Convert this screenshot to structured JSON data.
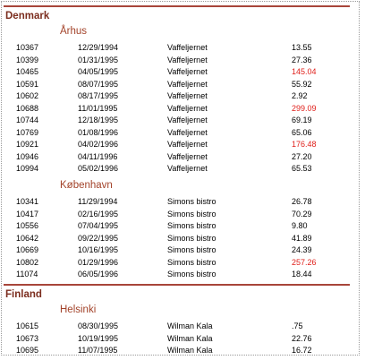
{
  "groups": [
    {
      "country": "Denmark",
      "cities": [
        {
          "name": "Århus",
          "rows": [
            {
              "id": "10367",
              "date": "12/29/1994",
              "customer": "Vaffeljernet",
              "amount": "13.55"
            },
            {
              "id": "10399",
              "date": "01/31/1995",
              "customer": "Vaffeljernet",
              "amount": "27.36"
            },
            {
              "id": "10465",
              "date": "04/05/1995",
              "customer": "Vaffeljernet",
              "amount": "145.04",
              "highlight": true
            },
            {
              "id": "10591",
              "date": "08/07/1995",
              "customer": "Vaffeljernet",
              "amount": "55.92"
            },
            {
              "id": "10602",
              "date": "08/17/1995",
              "customer": "Vaffeljernet",
              "amount": "2.92"
            },
            {
              "id": "10688",
              "date": "11/01/1995",
              "customer": "Vaffeljernet",
              "amount": "299.09",
              "highlight": true
            },
            {
              "id": "10744",
              "date": "12/18/1995",
              "customer": "Vaffeljernet",
              "amount": "69.19"
            },
            {
              "id": "10769",
              "date": "01/08/1996",
              "customer": "Vaffeljernet",
              "amount": "65.06"
            },
            {
              "id": "10921",
              "date": "04/02/1996",
              "customer": "Vaffeljernet",
              "amount": "176.48",
              "highlight": true
            },
            {
              "id": "10946",
              "date": "04/11/1996",
              "customer": "Vaffeljernet",
              "amount": "27.20"
            },
            {
              "id": "10994",
              "date": "05/02/1996",
              "customer": "Vaffeljernet",
              "amount": "65.53"
            }
          ]
        },
        {
          "name": "København",
          "rows": [
            {
              "id": "10341",
              "date": "11/29/1994",
              "customer": "Simons bistro",
              "amount": "26.78"
            },
            {
              "id": "10417",
              "date": "02/16/1995",
              "customer": "Simons bistro",
              "amount": "70.29"
            },
            {
              "id": "10556",
              "date": "07/04/1995",
              "customer": "Simons bistro",
              "amount": "9.80"
            },
            {
              "id": "10642",
              "date": "09/22/1995",
              "customer": "Simons bistro",
              "amount": "41.89"
            },
            {
              "id": "10669",
              "date": "10/16/1995",
              "customer": "Simons bistro",
              "amount": "24.39"
            },
            {
              "id": "10802",
              "date": "01/29/1996",
              "customer": "Simons bistro",
              "amount": "257.26",
              "highlight": true
            },
            {
              "id": "11074",
              "date": "06/05/1996",
              "customer": "Simons bistro",
              "amount": "18.44"
            }
          ]
        }
      ]
    },
    {
      "country": "Finland",
      "cities": [
        {
          "name": "Helsinki",
          "rows": [
            {
              "id": "10615",
              "date": "08/30/1995",
              "customer": "Wilman Kala",
              "amount": ".75"
            },
            {
              "id": "10673",
              "date": "10/19/1995",
              "customer": "Wilman Kala",
              "amount": "22.76"
            },
            {
              "id": "10695",
              "date": "11/07/1995",
              "customer": "Wilman Kala",
              "amount": "16.72"
            }
          ]
        }
      ]
    }
  ]
}
